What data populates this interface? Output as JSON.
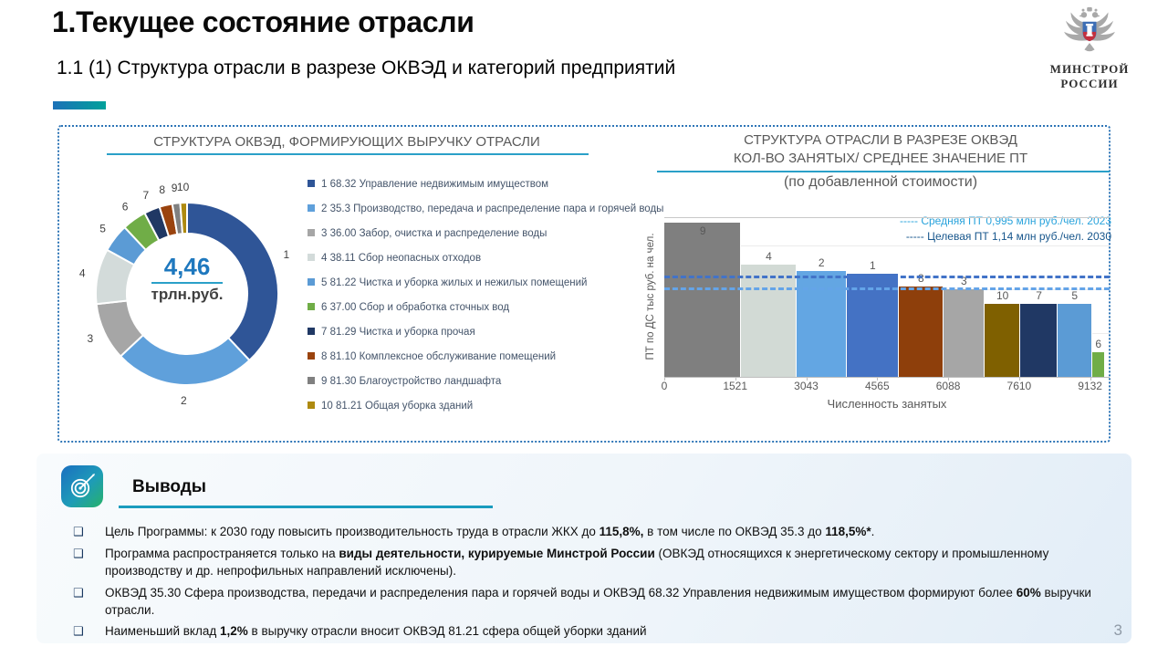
{
  "slide": {
    "title": "1.Текущее состояние отрасли",
    "subtitle": "1.1 (1) Структура отрасли в разрезе ОКВЭД и категорий предприятий",
    "page_number": "3",
    "logo": {
      "line1": "МИНСТРОЙ",
      "line2": "РОССИИ"
    }
  },
  "chart_data": [
    {
      "type": "pie",
      "variant": "donut",
      "title": "СТРУКТУРА ОКВЭД, ФОРМИРУЮЩИХ ВЫРУЧКУ ОТРАСЛИ",
      "center_label": {
        "value": "4,46",
        "unit": "трлн.руб."
      },
      "legend_position": "right",
      "slices": [
        {
          "n": "1",
          "label": "1 68.32 Управление недвижимым имуществом",
          "percent": 38.0,
          "color": "#2f5597"
        },
        {
          "n": "2",
          "label": "2 35.3 Производство, передача и распределение пара и горячей воды",
          "percent": 25.0,
          "color": "#5fa0db"
        },
        {
          "n": "3",
          "label": "3 36.00 Забор, очистка и распределение воды",
          "percent": 10.2,
          "color": "#a6a6a6"
        },
        {
          "n": "4",
          "label": "4 38.11 Сбор неопасных отходов",
          "percent": 9.8,
          "color": "#d3dbda"
        },
        {
          "n": "5",
          "label": "5 81.22 Чистка и уборка жилых и нежилых помещений",
          "percent": 5.0,
          "color": "#5b9bd5"
        },
        {
          "n": "6",
          "label": "6 37.00 Сбор и обработка сточных вод",
          "percent": 4.3,
          "color": "#70ad47"
        },
        {
          "n": "7",
          "label": "7 81.29 Чистка и уборка прочая",
          "percent": 2.8,
          "color": "#203864"
        },
        {
          "n": "8",
          "label": "8 81.10 Комплексное обслуживание помещений",
          "percent": 2.3,
          "color": "#9a430e"
        },
        {
          "n": "9",
          "label": "9 81.30 Благоустройство ландшафта",
          "percent": 1.4,
          "color": "#808080"
        },
        {
          "n": "10",
          "label": "10 81.21 Общая уборка зданий",
          "percent": 1.2,
          "color": "#ae8a10"
        }
      ]
    },
    {
      "type": "bar",
      "variant": "variable-width-bar",
      "title": [
        "СТРУКТУРА ОТРАСЛИ В РАЗРЕЗЕ ОКВЭД",
        "КОЛ-ВО ЗАНЯТЫХ/ СРЕДНЕЕ ЗНАЧЕНИЕ ПТ",
        "(по добавленной стоимости)"
      ],
      "xlabel": "Численность занятых",
      "ylabel": "ПТ по ДС тыс руб. на чел.",
      "x_ticks": [
        0,
        1521,
        3043,
        4565,
        6088,
        7610,
        9132
      ],
      "x_max": 9550,
      "y_max": 1830,
      "grid_values": [
        500,
        1000,
        1500
      ],
      "reference_lines": [
        {
          "label": "----- Средняя ПТ 0,995 млн руб./чел. 2023",
          "value": 995,
          "line_color": "#64a4e8",
          "label_color": "#29a3dc"
        },
        {
          "label": "----- Целевая ПТ 1,14 млн руб./чел. 2030",
          "value": 1140,
          "line_color": "#4273c8",
          "label_color": "#17568c"
        }
      ],
      "bars": [
        {
          "label": "9",
          "employment": 1650,
          "pt": 1780,
          "color": "#7f7f7f"
        },
        {
          "label": "4",
          "employment": 1180,
          "pt": 1290,
          "color": "#d2dad5"
        },
        {
          "label": "2",
          "employment": 1080,
          "pt": 1225,
          "color": "#63a6e3"
        },
        {
          "label": "1",
          "employment": 1120,
          "pt": 1190,
          "color": "#4472c4"
        },
        {
          "label": "8",
          "employment": 950,
          "pt": 1040,
          "color": "#8e3f0b"
        },
        {
          "label": "3",
          "employment": 890,
          "pt": 1010,
          "color": "#a6a6a6"
        },
        {
          "label": "10",
          "employment": 770,
          "pt": 840,
          "color": "#7f6000"
        },
        {
          "label": "7",
          "employment": 790,
          "pt": 840,
          "color": "#203864"
        },
        {
          "label": "5",
          "employment": 740,
          "pt": 840,
          "color": "#5b9bd5"
        },
        {
          "label": "6",
          "employment": 280,
          "pt": 280,
          "color": "#70ad47"
        }
      ]
    }
  ],
  "conclusions": {
    "heading": "Выводы",
    "marker": "❑",
    "bullets": [
      {
        "segments": [
          {
            "t": "Цель Программы: к 2030 году повысить производительность труда  в отрасли ЖКХ до ",
            "b": false
          },
          {
            "t": "115,8%,",
            "b": true
          },
          {
            "t": " в том числе по ОКВЭД 35.3 до ",
            "b": false
          },
          {
            "t": "118,5%*",
            "b": true
          },
          {
            "t": ".",
            "b": false
          }
        ]
      },
      {
        "segments": [
          {
            "t": "Программа распространяется только на ",
            "b": false
          },
          {
            "t": "виды деятельности, курируемые Минстрой России",
            "b": true
          },
          {
            "t": " (ОВКЭД относящихся к энергетическому сектору и промышленному производству и др. непрофильных направлений исключены).",
            "b": false
          }
        ]
      },
      {
        "segments": [
          {
            "t": "ОКВЭД 35.30 Сфера производства, передачи и распределения пара и горячей воды и ОКВЭД 68.32 Управления недвижимым имуществом формируют более ",
            "b": false
          },
          {
            "t": "60%",
            "b": true
          },
          {
            "t": " выручки отрасли.",
            "b": false
          }
        ]
      },
      {
        "segments": [
          {
            "t": "Наименьший вклад ",
            "b": false
          },
          {
            "t": "1,2%",
            "b": true
          },
          {
            "t": " в выручку отрасли вносит ОКВЭД 81.21 сфера общей уборки зданий",
            "b": false
          }
        ]
      }
    ]
  }
}
